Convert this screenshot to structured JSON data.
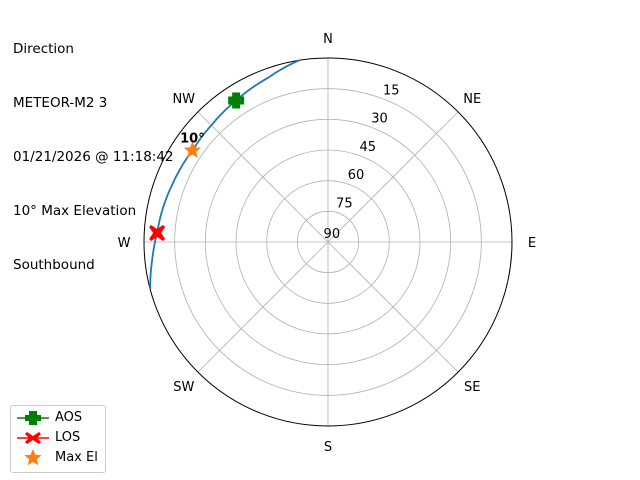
{
  "title_lines": [
    "Direction",
    "METEOR-M2 3",
    "01/21/2026 @ 11:18:42",
    "10° Max Elevation",
    "Southbound"
  ],
  "chart_data": {
    "type": "polar",
    "theta_direction": "clockwise",
    "theta_zero": "north",
    "radial_axis": "elevation (90 at center, 0 at edge)",
    "rlim": [
      90,
      0
    ],
    "direction_labels": [
      {
        "label": "N",
        "az": 0
      },
      {
        "label": "NE",
        "az": 45
      },
      {
        "label": "E",
        "az": 90
      },
      {
        "label": "SE",
        "az": 135
      },
      {
        "label": "S",
        "az": 180
      },
      {
        "label": "SW",
        "az": 225
      },
      {
        "label": "W",
        "az": 270
      },
      {
        "label": "NW",
        "az": 315
      }
    ],
    "radial_ticks": [
      90,
      75,
      60,
      45,
      30,
      15
    ],
    "grid": true,
    "track": {
      "color": "#1f77b4",
      "az": [
        351,
        340,
        327,
        315,
        304,
        290,
        273,
        264,
        255
      ],
      "el": [
        0,
        4.5,
        7.5,
        9.3,
        10,
        8.8,
        6.3,
        3.5,
        0
      ]
    },
    "markers": [
      {
        "name": "AOS",
        "az": 327,
        "el": 7.5,
        "color": "#008000",
        "symbol": "plus"
      },
      {
        "name": "LOS",
        "az": 273,
        "el": 6.3,
        "color": "#ff0000",
        "symbol": "x"
      },
      {
        "name": "Max El",
        "az": 304,
        "el": 10,
        "color": "#ff7f0e",
        "symbol": "star"
      }
    ],
    "annotations": [
      {
        "text": "10°",
        "az": 304,
        "el": 10
      }
    ],
    "legend": {
      "placement": "bottom-left",
      "entries": [
        "AOS",
        "LOS",
        "Max El"
      ]
    }
  }
}
